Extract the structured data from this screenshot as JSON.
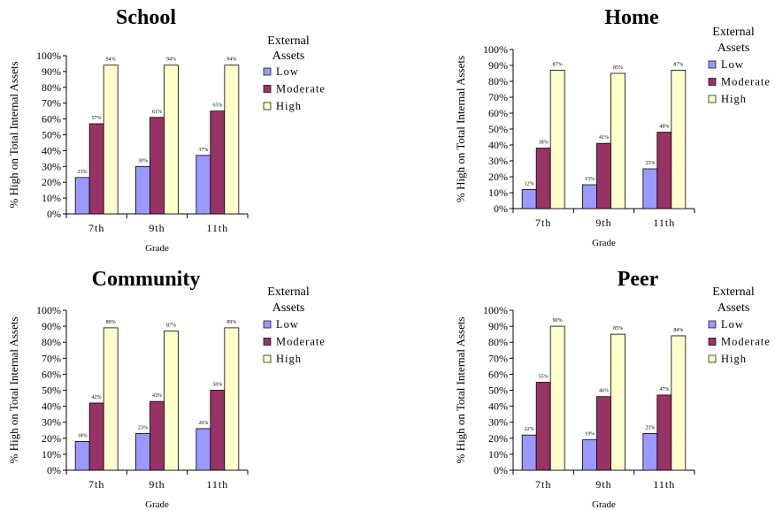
{
  "chart_data": [
    {
      "type": "bar",
      "title": "School",
      "xlabel": "Grade",
      "ylabel": "% High on Total Internal Assets",
      "categories": [
        "7th",
        "9th",
        "11th"
      ],
      "ylim": [
        0,
        100
      ],
      "yticks": [
        "0%",
        "10%",
        "20%",
        "30%",
        "40%",
        "50%",
        "60%",
        "70%",
        "80%",
        "90%",
        "100%"
      ],
      "legend_title": [
        "External",
        "Assets"
      ],
      "legend_position": "right",
      "series": [
        {
          "name": "Low",
          "color": "#9999ff",
          "values": [
            23,
            30,
            37
          ],
          "labels": [
            "23%",
            "30%",
            "37%"
          ]
        },
        {
          "name": "Moderate",
          "color": "#993366",
          "values": [
            57,
            61,
            65
          ],
          "labels": [
            "57%",
            "61%",
            "65%"
          ]
        },
        {
          "name": "High",
          "color": "#ffffcc",
          "values": [
            94,
            94,
            94
          ],
          "labels": [
            "94%",
            "94%",
            "94%"
          ]
        }
      ]
    },
    {
      "type": "bar",
      "title": "Home",
      "xlabel": "Grade",
      "ylabel": "% High on Total Internal Assets",
      "categories": [
        "7th",
        "9th",
        "11th"
      ],
      "ylim": [
        0,
        100
      ],
      "yticks": [
        "0%",
        "10%",
        "20%",
        "30%",
        "40%",
        "50%",
        "60%",
        "70%",
        "80%",
        "90%",
        "100%"
      ],
      "legend_title": [
        "External",
        "Assets"
      ],
      "legend_position": "right",
      "series": [
        {
          "name": "Low",
          "color": "#9999ff",
          "values": [
            12,
            15,
            25
          ],
          "labels": [
            "12%",
            "15%",
            "25%"
          ]
        },
        {
          "name": "Moderate",
          "color": "#993366",
          "values": [
            38,
            41,
            48
          ],
          "labels": [
            "38%",
            "41%",
            "48%"
          ]
        },
        {
          "name": "High",
          "color": "#ffffcc",
          "values": [
            87,
            85,
            87
          ],
          "labels": [
            "87%",
            "85%",
            "87%"
          ]
        }
      ]
    },
    {
      "type": "bar",
      "title": "Community",
      "xlabel": "Grade",
      "ylabel": "% High on Total Internal Assets",
      "categories": [
        "7th",
        "9th",
        "11th"
      ],
      "ylim": [
        0,
        100
      ],
      "yticks": [
        "0%",
        "10%",
        "20%",
        "30%",
        "40%",
        "50%",
        "60%",
        "70%",
        "80%",
        "90%",
        "100%"
      ],
      "legend_title": [
        "External",
        "Assets"
      ],
      "legend_position": "right",
      "series": [
        {
          "name": "Low",
          "color": "#9999ff",
          "values": [
            18,
            23,
            26
          ],
          "labels": [
            "18%",
            "23%",
            "26%"
          ]
        },
        {
          "name": "Moderate",
          "color": "#993366",
          "values": [
            42,
            43,
            50
          ],
          "labels": [
            "42%",
            "43%",
            "50%"
          ]
        },
        {
          "name": "High",
          "color": "#ffffcc",
          "values": [
            89,
            87,
            89
          ],
          "labels": [
            "89%",
            "87%",
            "89%"
          ]
        }
      ]
    },
    {
      "type": "bar",
      "title": "Peer",
      "xlabel": "Grade",
      "ylabel": "% High on Total Internal Assets",
      "categories": [
        "7th",
        "9th",
        "11th"
      ],
      "ylim": [
        0,
        100
      ],
      "yticks": [
        "0%",
        "10%",
        "20%",
        "30%",
        "40%",
        "50%",
        "60%",
        "70%",
        "80%",
        "90%",
        "100%"
      ],
      "legend_title": [
        "External",
        "Assets"
      ],
      "legend_position": "right",
      "series": [
        {
          "name": "Low",
          "color": "#9999ff",
          "values": [
            22,
            19,
            23
          ],
          "labels": [
            "22%",
            "19%",
            "23%"
          ]
        },
        {
          "name": "Moderate",
          "color": "#993366",
          "values": [
            55,
            46,
            47
          ],
          "labels": [
            "55%",
            "46%",
            "47%"
          ]
        },
        {
          "name": "High",
          "color": "#ffffcc",
          "values": [
            90,
            85,
            84
          ],
          "labels": [
            "90%",
            "85%",
            "84%"
          ]
        }
      ]
    }
  ]
}
